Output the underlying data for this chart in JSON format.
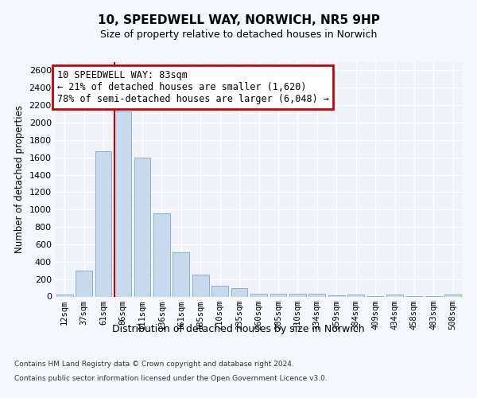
{
  "title1": "10, SPEEDWELL WAY, NORWICH, NR5 9HP",
  "title2": "Size of property relative to detached houses in Norwich",
  "xlabel": "Distribution of detached houses by size in Norwich",
  "ylabel": "Number of detached properties",
  "bar_color": "#c8d8ed",
  "bar_edge_color": "#7aaacf",
  "categories": [
    "12sqm",
    "37sqm",
    "61sqm",
    "86sqm",
    "111sqm",
    "136sqm",
    "161sqm",
    "185sqm",
    "210sqm",
    "235sqm",
    "260sqm",
    "285sqm",
    "310sqm",
    "334sqm",
    "359sqm",
    "384sqm",
    "409sqm",
    "434sqm",
    "458sqm",
    "483sqm",
    "508sqm"
  ],
  "values": [
    25,
    300,
    1670,
    2130,
    1600,
    960,
    505,
    250,
    125,
    100,
    35,
    35,
    30,
    35,
    15,
    25,
    5,
    20,
    5,
    5,
    20
  ],
  "ylim": [
    0,
    2700
  ],
  "yticks": [
    0,
    200,
    400,
    600,
    800,
    1000,
    1200,
    1400,
    1600,
    1800,
    2000,
    2200,
    2400,
    2600
  ],
  "annotation_text": "10 SPEEDWELL WAY: 83sqm\n← 21% of detached houses are smaller (1,620)\n78% of semi-detached houses are larger (6,048) →",
  "annotation_box_facecolor": "white",
  "annotation_box_edgecolor": "#cc0000",
  "vline_color": "#cc0000",
  "footer1": "Contains HM Land Registry data © Crown copyright and database right 2024.",
  "footer2": "Contains public sector information licensed under the Open Government Licence v3.0.",
  "bg_color": "#f5f8fc",
  "plot_bg_color": "#f0f4fa"
}
